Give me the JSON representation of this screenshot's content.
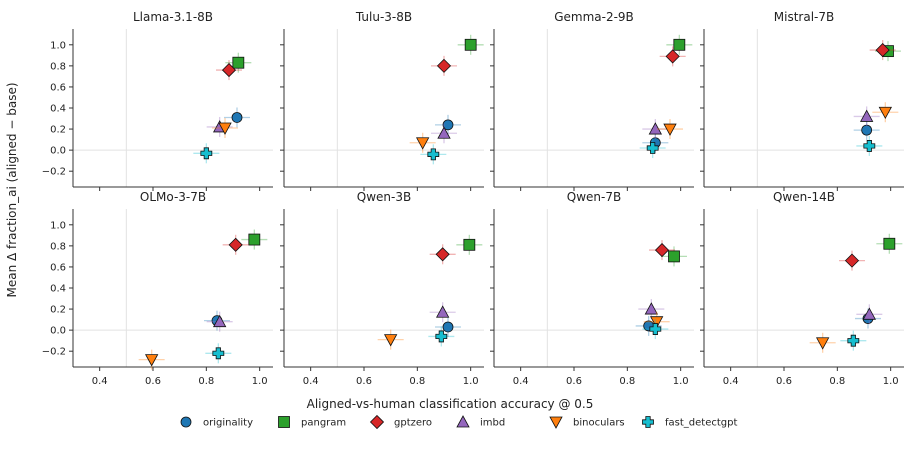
{
  "figure": {
    "xlabel": "Aligned-vs-human classification accuracy @ 0.5",
    "ylabel": "Mean Δ fraction_ai  (aligned − base)"
  },
  "legend": {
    "placement": "bottom-center",
    "items": [
      {
        "name": "originality",
        "marker": "circle",
        "color": "#1f77b4"
      },
      {
        "name": "pangram",
        "marker": "square",
        "color": "#2ca02c"
      },
      {
        "name": "gptzero",
        "marker": "diamond",
        "color": "#d62728"
      },
      {
        "name": "imbd",
        "marker": "triangle-up",
        "color": "#9467bd"
      },
      {
        "name": "binoculars",
        "marker": "triangle-down",
        "color": "#ff7f0e"
      },
      {
        "name": "fast_detectgpt",
        "marker": "plus",
        "color": "#17becf"
      }
    ]
  },
  "chart_data": {
    "type": "scatter",
    "grid": false,
    "reference_lines": {
      "x": 0.5,
      "y": 0
    },
    "xlim": [
      0.3,
      1.05
    ],
    "ylim": [
      -0.35,
      1.15
    ],
    "xticks": [
      "0.4",
      "0.6",
      "0.8",
      "1.0"
    ],
    "yticks": [
      "−0.2",
      "0.0",
      "0.2",
      "0.4",
      "0.6",
      "0.8",
      "1.0"
    ],
    "series_names": [
      "originality",
      "pangram",
      "gptzero",
      "imbd",
      "binoculars",
      "fast_detectgpt"
    ],
    "panels": [
      {
        "title": "Llama-3.1-8B",
        "points": {
          "originality": [
            0.915,
            0.31
          ],
          "pangram": [
            0.92,
            0.83
          ],
          "gptzero": [
            0.885,
            0.76
          ],
          "imbd": [
            0.85,
            0.22
          ],
          "binoculars": [
            0.87,
            0.21
          ],
          "fast_detectgpt": [
            0.8,
            -0.03
          ]
        }
      },
      {
        "title": "Tulu-3-8B",
        "points": {
          "originality": [
            0.915,
            0.24
          ],
          "pangram": [
            1.0,
            1.0
          ],
          "gptzero": [
            0.9,
            0.8
          ],
          "imbd": [
            0.9,
            0.16
          ],
          "binoculars": [
            0.82,
            0.07
          ],
          "fast_detectgpt": [
            0.86,
            -0.04
          ]
        }
      },
      {
        "title": "Gemma-2-9B",
        "points": {
          "originality": [
            0.905,
            0.07
          ],
          "pangram": [
            0.995,
            1.0
          ],
          "gptzero": [
            0.97,
            0.89
          ],
          "imbd": [
            0.905,
            0.2
          ],
          "binoculars": [
            0.96,
            0.2
          ],
          "fast_detectgpt": [
            0.895,
            0.02
          ]
        }
      },
      {
        "title": "Mistral-7B",
        "points": {
          "originality": [
            0.91,
            0.19
          ],
          "pangram": [
            0.99,
            0.94
          ],
          "gptzero": [
            0.97,
            0.95
          ],
          "imbd": [
            0.91,
            0.32
          ],
          "binoculars": [
            0.98,
            0.36
          ],
          "fast_detectgpt": [
            0.92,
            0.04
          ]
        }
      },
      {
        "title": "OLMo-3-7B",
        "points": {
          "originality": [
            0.84,
            0.09
          ],
          "pangram": [
            0.98,
            0.86
          ],
          "gptzero": [
            0.91,
            0.81
          ],
          "imbd": [
            0.85,
            0.08
          ],
          "binoculars": [
            0.595,
            -0.28
          ],
          "fast_detectgpt": [
            0.845,
            -0.22
          ]
        }
      },
      {
        "title": "Qwen-3B",
        "points": {
          "originality": [
            0.915,
            0.03
          ],
          "pangram": [
            0.995,
            0.81
          ],
          "gptzero": [
            0.895,
            0.72
          ],
          "imbd": [
            0.895,
            0.17
          ],
          "binoculars": [
            0.7,
            -0.09
          ],
          "fast_detectgpt": [
            0.89,
            -0.06
          ]
        }
      },
      {
        "title": "Qwen-7B",
        "points": {
          "originality": [
            0.88,
            0.04
          ],
          "pangram": [
            0.975,
            0.7
          ],
          "gptzero": [
            0.93,
            0.76
          ],
          "imbd": [
            0.89,
            0.2
          ],
          "binoculars": [
            0.91,
            0.08
          ],
          "fast_detectgpt": [
            0.905,
            0.01
          ]
        }
      },
      {
        "title": "Qwen-14B",
        "points": {
          "originality": [
            0.915,
            0.11
          ],
          "pangram": [
            0.995,
            0.82
          ],
          "gptzero": [
            0.855,
            0.66
          ],
          "imbd": [
            0.92,
            0.15
          ],
          "binoculars": [
            0.745,
            -0.12
          ],
          "fast_detectgpt": [
            0.86,
            -0.1
          ]
        }
      }
    ]
  }
}
